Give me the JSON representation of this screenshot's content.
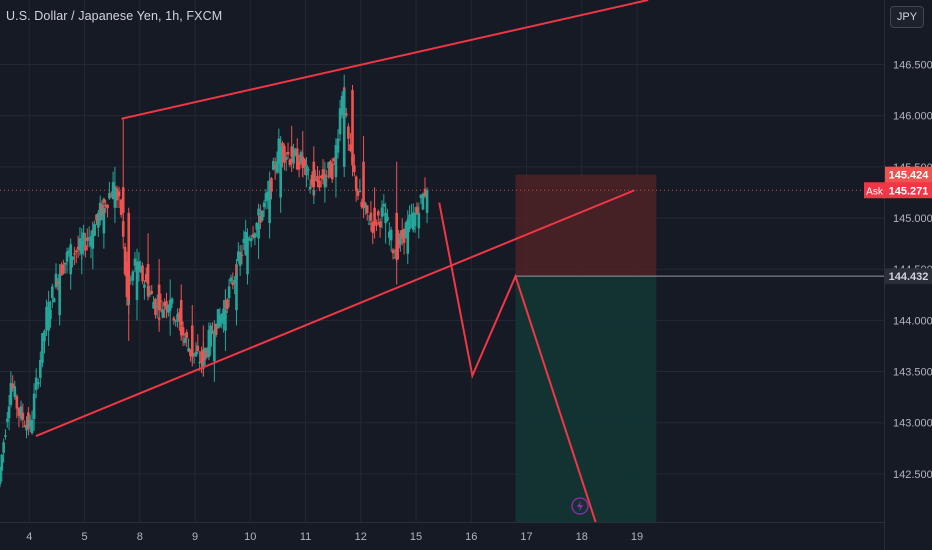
{
  "header": {
    "symbol_title": "U.S. Dollar / Japanese Yen, 1h, FXCM",
    "currency_label": "JPY"
  },
  "colors": {
    "background": "#161a25",
    "grid": "#242832",
    "up": "#26a69a",
    "down": "#ef5350",
    "drawing": "#f23645",
    "axis_text": "#b2b5be",
    "stop_zone": "#4d2326",
    "target_zone": "#123634"
  },
  "icons": {
    "replay": "lightning-icon"
  },
  "chart_data": {
    "type": "candlestick",
    "title": "U.S. Dollar / Japanese Yen, 1h, FXCM",
    "currency": "JPY",
    "ylim": [
      142.03,
      147.13
    ],
    "xlim": [
      3.47,
      19.47
    ],
    "y_ticks": [
      "142.500",
      "143.000",
      "143.500",
      "144.000",
      "144.500",
      "145.000",
      "145.500",
      "146.000",
      "146.500"
    ],
    "x_ticks": [
      {
        "x": 4,
        "label": "4"
      },
      {
        "x": 5,
        "label": "5"
      },
      {
        "x": 6,
        "label": "8"
      },
      {
        "x": 7,
        "label": "9"
      },
      {
        "x": 8,
        "label": "10"
      },
      {
        "x": 9,
        "label": "11"
      },
      {
        "x": 10,
        "label": "12"
      },
      {
        "x": 11,
        "label": "15"
      },
      {
        "x": 12,
        "label": "16"
      },
      {
        "x": 13,
        "label": "17"
      },
      {
        "x": 14,
        "label": "18"
      },
      {
        "x": 15,
        "label": "19"
      }
    ],
    "grid": true,
    "price_labels": [
      {
        "name": "stop",
        "value": 145.424,
        "label": "145.424"
      },
      {
        "name": "ask",
        "value": 145.271,
        "label": "145.271",
        "tag": "Ask"
      },
      {
        "name": "entry",
        "value": 144.432,
        "label": "144.432"
      }
    ],
    "close_ohlc": [
      [
        4.35,
        143.9,
        144.15,
        143.75,
        144.05
      ],
      [
        4.55,
        144.05,
        144.55,
        143.95,
        144.45
      ],
      [
        4.75,
        144.45,
        144.8,
        144.3,
        144.65
      ],
      [
        4.95,
        144.65,
        144.9,
        144.45,
        144.7
      ],
      [
        5.15,
        144.7,
        144.95,
        144.5,
        144.85
      ],
      [
        5.35,
        144.85,
        145.2,
        144.7,
        145.1
      ],
      [
        5.55,
        145.1,
        145.5,
        144.95,
        145.3
      ],
      [
        5.7,
        145.3,
        145.98,
        144.9,
        145.05
      ],
      [
        5.8,
        145.05,
        145.1,
        143.8,
        144.2
      ],
      [
        5.95,
        144.2,
        144.7,
        144.0,
        144.55
      ],
      [
        6.15,
        144.55,
        144.85,
        144.2,
        144.35
      ],
      [
        6.35,
        144.35,
        144.6,
        143.95,
        144.1
      ],
      [
        6.55,
        144.1,
        144.4,
        143.85,
        144.2
      ],
      [
        6.75,
        144.2,
        144.35,
        143.8,
        143.95
      ],
      [
        6.95,
        143.95,
        144.15,
        143.55,
        143.7
      ],
      [
        7.15,
        143.7,
        143.95,
        143.45,
        143.6
      ],
      [
        7.35,
        143.6,
        144.0,
        143.4,
        143.9
      ],
      [
        7.55,
        143.9,
        144.3,
        143.7,
        144.1
      ],
      [
        7.75,
        144.1,
        144.6,
        143.95,
        144.45
      ],
      [
        7.95,
        144.45,
        144.9,
        144.35,
        144.8
      ],
      [
        8.15,
        144.8,
        145.05,
        144.6,
        144.95
      ],
      [
        8.35,
        144.95,
        145.3,
        144.8,
        145.2
      ],
      [
        8.55,
        145.2,
        145.8,
        145.05,
        145.7
      ],
      [
        8.75,
        145.7,
        145.9,
        145.45,
        145.6
      ],
      [
        8.95,
        145.6,
        145.85,
        145.4,
        145.55
      ],
      [
        9.15,
        145.55,
        145.7,
        145.2,
        145.3
      ],
      [
        9.35,
        145.3,
        145.55,
        145.15,
        145.4
      ],
      [
        9.55,
        145.4,
        145.6,
        145.2,
        145.5
      ],
      [
        9.7,
        145.5,
        146.4,
        145.4,
        146.25
      ],
      [
        9.85,
        146.25,
        146.3,
        145.45,
        145.55
      ],
      [
        10.05,
        145.55,
        145.8,
        145.0,
        145.1
      ],
      [
        10.25,
        145.1,
        145.3,
        144.8,
        144.95
      ],
      [
        10.45,
        144.95,
        145.15,
        144.75,
        145.05
      ],
      [
        10.65,
        145.05,
        145.55,
        144.35,
        144.65
      ],
      [
        10.85,
        144.65,
        145.0,
        144.55,
        144.9
      ],
      [
        11.05,
        144.9,
        145.15,
        144.8,
        145.05
      ],
      [
        11.2,
        145.05,
        145.3,
        144.95,
        145.27
      ]
    ],
    "drawings": {
      "channel_upper": [
        [
          5.67,
          145.97
        ],
        [
          15.2,
          147.13
        ]
      ],
      "channel_lower": [
        [
          4.12,
          142.87
        ],
        [
          14.95,
          145.27
        ]
      ],
      "projection_path": [
        [
          11.42,
          145.15
        ],
        [
          12.02,
          143.46
        ],
        [
          12.8,
          144.43
        ],
        [
          14.25,
          142.03
        ]
      ],
      "position": {
        "x_start": 12.8,
        "x_end": 15.35,
        "stop": 145.424,
        "entry": 144.432,
        "target": 142.03
      }
    }
  }
}
